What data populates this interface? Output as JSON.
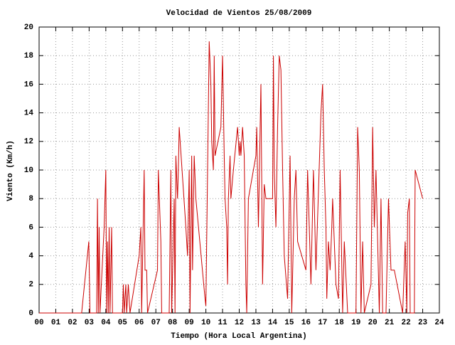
{
  "chart_data": {
    "type": "line",
    "title": "Velocidad de Vientos 25/08/2009",
    "x_label": "Tiempo (Hora Local Argentina)",
    "y_label": "Viento (Km/h)",
    "color": "#cc0000",
    "grid": true,
    "xlim": [
      0,
      24
    ],
    "ylim": [
      0,
      20
    ],
    "xticks": [
      {
        "value": 0,
        "label": "00"
      },
      {
        "value": 1,
        "label": "01"
      },
      {
        "value": 2,
        "label": "02"
      },
      {
        "value": 3,
        "label": "03"
      },
      {
        "value": 4,
        "label": "04"
      },
      {
        "value": 5,
        "label": "05"
      },
      {
        "value": 6,
        "label": "06"
      },
      {
        "value": 7,
        "label": "07"
      },
      {
        "value": 8,
        "label": "08"
      },
      {
        "value": 9,
        "label": "09"
      },
      10,
      11,
      12,
      13,
      14,
      15,
      16,
      17,
      18,
      19,
      20,
      21,
      22,
      23,
      24
    ],
    "yticks": [
      0,
      2,
      4,
      6,
      8,
      10,
      12,
      14,
      16,
      18,
      20
    ],
    "x": [
      0,
      2.55,
      2.98,
      3.05,
      3.45,
      3.5,
      3.55,
      3.6,
      3.65,
      3.9,
      4.0,
      4.05,
      4.1,
      4.15,
      4.2,
      4.25,
      4.35,
      4.4,
      5.0,
      5.05,
      5.1,
      5.2,
      5.25,
      5.35,
      5.45,
      6.0,
      6.1,
      6.15,
      6.3,
      6.35,
      6.45,
      6.5,
      7.1,
      7.15,
      7.3,
      7.35,
      7.8,
      7.9,
      7.95,
      8.1,
      8.15,
      8.2,
      8.3,
      8.35,
      8.4,
      8.8,
      8.9,
      9.0,
      9.05,
      9.15,
      9.2,
      9.3,
      9.4,
      9.95,
      10.0,
      10.2,
      10.3,
      10.35,
      10.45,
      10.5,
      10.55,
      10.9,
      11.0,
      11.1,
      11.15,
      11.25,
      11.3,
      11.35,
      11.45,
      11.5,
      11.65,
      11.9,
      12.0,
      12.05,
      12.1,
      12.2,
      12.3,
      12.4,
      12.45,
      12.55,
      13.0,
      13.05,
      13.15,
      13.3,
      13.4,
      13.5,
      13.6,
      14.0,
      14.05,
      14.1,
      14.2,
      14.3,
      14.4,
      14.5,
      14.6,
      14.7,
      14.9,
      15.05,
      15.15,
      15.3,
      15.4,
      15.5,
      16.0,
      16.1,
      16.3,
      16.45,
      16.6,
      16.9,
      17.0,
      17.1,
      17.2,
      17.25,
      17.35,
      17.45,
      17.55,
      17.6,
      17.8,
      17.95,
      18.05,
      18.2,
      18.3,
      18.5,
      19.0,
      19.1,
      19.2,
      19.3,
      19.4,
      19.5,
      19.9,
      20.0,
      20.1,
      20.2,
      20.3,
      20.4,
      20.5,
      20.6,
      20.8,
      20.95,
      21.1,
      21.3,
      21.8,
      21.95,
      22.05,
      22.1,
      22.2,
      22.25,
      22.5,
      22.55,
      23.0
    ],
    "values": [
      0,
      0,
      5,
      0,
      0,
      8,
      0,
      6,
      0,
      6,
      10,
      0,
      5,
      0,
      6,
      0,
      6,
      0,
      0,
      2,
      0,
      2,
      0,
      2,
      0,
      4,
      6,
      0,
      10,
      3,
      3,
      0,
      3,
      10,
      5,
      0,
      0,
      10,
      0,
      8,
      0,
      11,
      8,
      10,
      13,
      6,
      4,
      10,
      0,
      11,
      3,
      11,
      8,
      1,
      0.5,
      19,
      16,
      12,
      10,
      18,
      11,
      13,
      18,
      11,
      8,
      6,
      2,
      8,
      11,
      8,
      10,
      13,
      11,
      12,
      11,
      13,
      11,
      2,
      0,
      8,
      11,
      13,
      6,
      16,
      2,
      9,
      8,
      8,
      18,
      10,
      6,
      13,
      18,
      17,
      10,
      4,
      1,
      11,
      0,
      8,
      10,
      5,
      3,
      10,
      2,
      10,
      3,
      14,
      16,
      10,
      6,
      1,
      5,
      3,
      6,
      8,
      2,
      1,
      10,
      0,
      5,
      0,
      0,
      13,
      10,
      0,
      5,
      0,
      2,
      13,
      6,
      10,
      5,
      0,
      8,
      0,
      0,
      8,
      3,
      3,
      0,
      5,
      0,
      7,
      8,
      0,
      0,
      10,
      8
    ]
  }
}
